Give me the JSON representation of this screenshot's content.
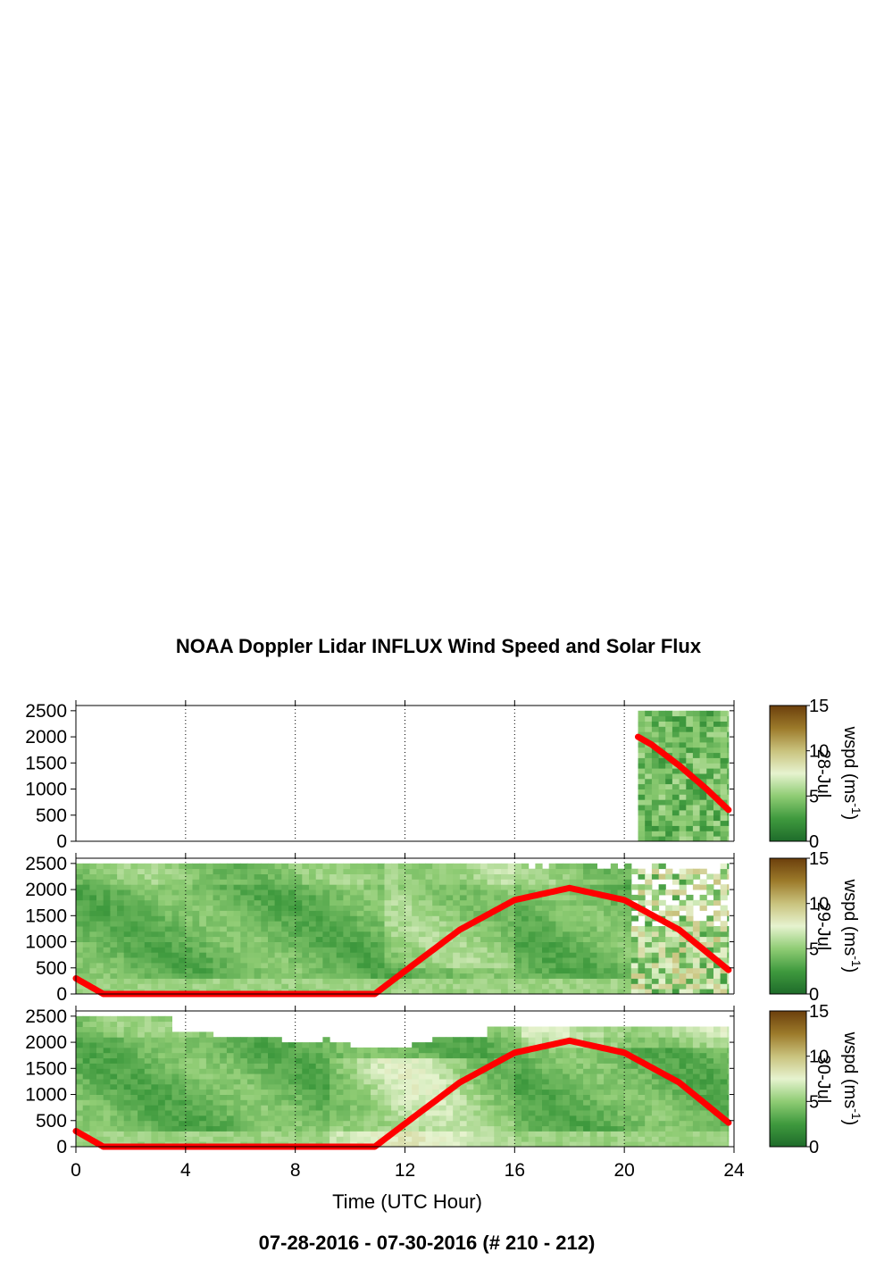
{
  "figure": {
    "title": "NOAA Doppler Lidar INFLUX Wind Speed and Solar Flux",
    "footer": "07-28-2016 - 07-30-2016   (# 210 - 212)",
    "xlabel": "Time (UTC Hour)",
    "colorbar_label": "wspd (ms",
    "colorbar_label_sup": "-1",
    "colorbar_label_end": ")"
  },
  "chart_data": {
    "type": "heatmap",
    "x_ticks": [
      0,
      4,
      8,
      12,
      16,
      20,
      24
    ],
    "xlim": [
      0,
      24
    ],
    "y_ticks": [
      0,
      500,
      1000,
      1500,
      2000,
      2500
    ],
    "ylim": [
      0,
      2600
    ],
    "colorbar": {
      "ticks": [
        0,
        5,
        10,
        15
      ],
      "range": [
        0,
        15
      ],
      "colors": [
        "#1e6b2a",
        "#3f9a3e",
        "#8fcc74",
        "#e6f3cf",
        "#c9c27d",
        "#9c7a2a",
        "#6b3f0c"
      ]
    },
    "vertical_gridlines_at": [
      4,
      8,
      12,
      16,
      20,
      24
    ],
    "panels": [
      {
        "date_label": "28-Jul",
        "data_start_hour": 20.5,
        "data_end_hour": 23.8,
        "data_max_height": 2500,
        "solar_flux_curve": [
          [
            20.5,
            2000
          ],
          [
            21,
            1850
          ],
          [
            22,
            1450
          ],
          [
            23,
            1000
          ],
          [
            23.8,
            600
          ]
        ]
      },
      {
        "date_label": "29-Jul",
        "data_start_hour": 0,
        "data_end_hour": 23.8,
        "data_max_height": 2500,
        "solar_flux_curve": [
          [
            0,
            300
          ],
          [
            1,
            0
          ],
          [
            10.9,
            0
          ],
          [
            12,
            440
          ],
          [
            14,
            1230
          ],
          [
            16,
            1800
          ],
          [
            18,
            2030
          ],
          [
            20,
            1800
          ],
          [
            22,
            1230
          ],
          [
            23.8,
            460
          ]
        ]
      },
      {
        "date_label": "30-Jul",
        "data_start_hour": 0,
        "data_end_hour": 23.8,
        "data_max_height": 2500,
        "solar_flux_curve": [
          [
            0,
            300
          ],
          [
            1,
            0
          ],
          [
            10.9,
            0
          ],
          [
            12,
            440
          ],
          [
            14,
            1230
          ],
          [
            16,
            1800
          ],
          [
            18,
            2030
          ],
          [
            20,
            1800
          ],
          [
            22,
            1230
          ],
          [
            23.8,
            460
          ]
        ]
      }
    ],
    "solar_curve_color": "#ff0000"
  }
}
